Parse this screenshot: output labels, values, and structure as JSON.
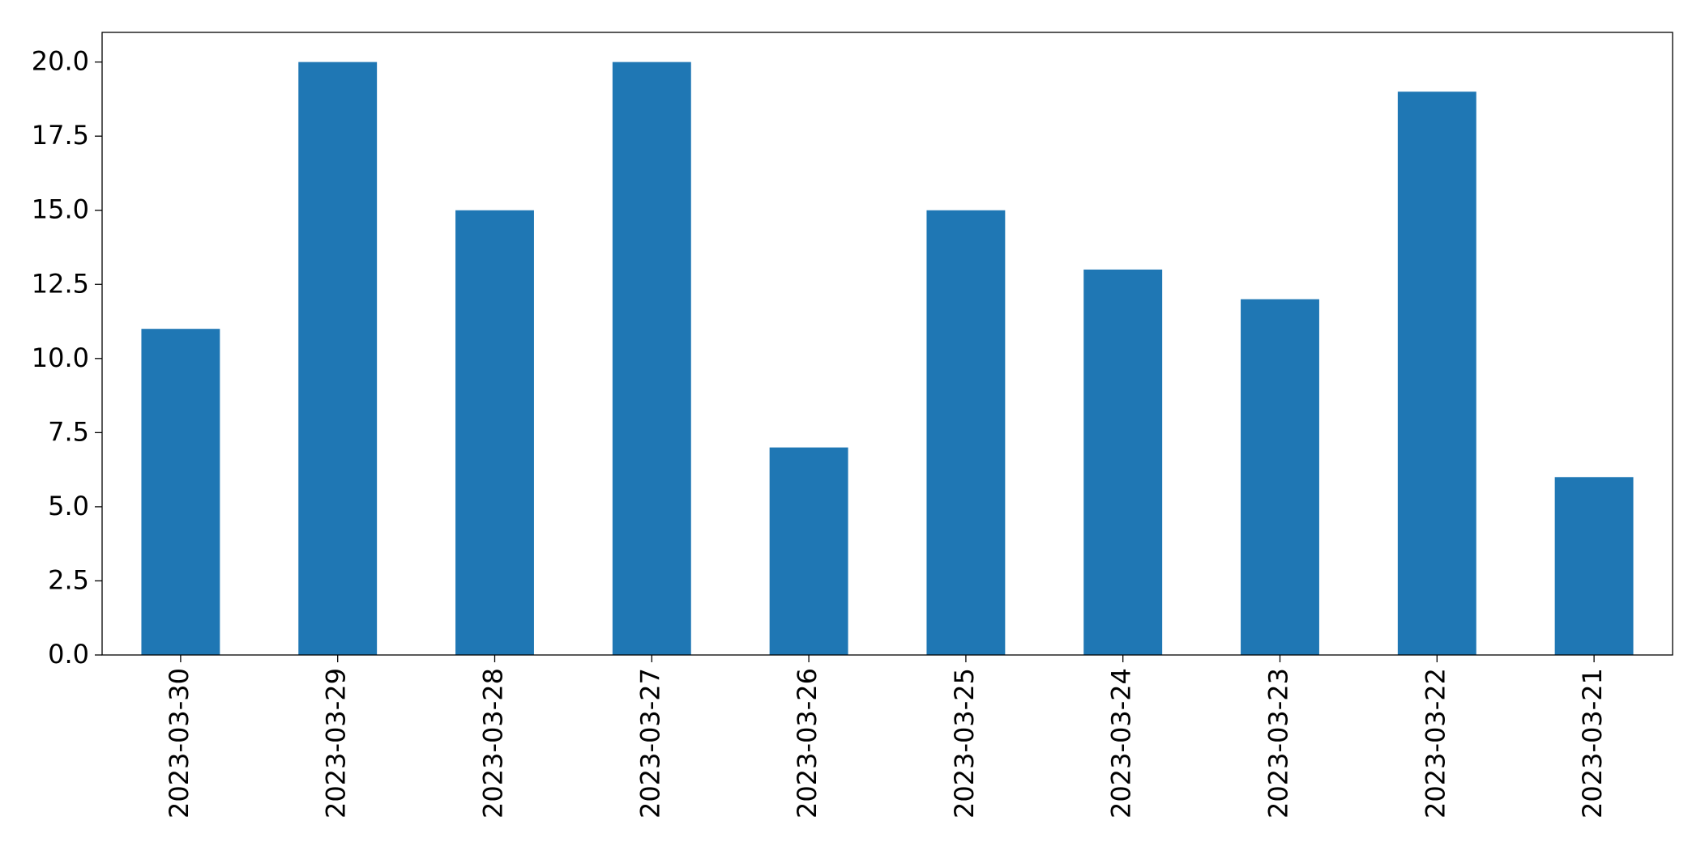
{
  "chart_data": {
    "type": "bar",
    "categories": [
      "2023-03-30",
      "2023-03-29",
      "2023-03-28",
      "2023-03-27",
      "2023-03-26",
      "2023-03-25",
      "2023-03-24",
      "2023-03-23",
      "2023-03-22",
      "2023-03-21"
    ],
    "values": [
      11,
      20,
      15,
      20,
      7,
      15,
      13,
      12,
      19,
      6
    ],
    "color": "#1f77b4",
    "ylim": [
      0,
      21
    ],
    "yticks": [
      {
        "value": 0,
        "label": "0.0"
      },
      2.5,
      {
        "value": 5,
        "label": "5.0"
      },
      7.5,
      {
        "value": 10,
        "label": "10.0"
      },
      12.5,
      {
        "value": 15,
        "label": "15.0"
      },
      17.5,
      {
        "value": 20,
        "label": "20.0"
      }
    ],
    "grid": false
  }
}
